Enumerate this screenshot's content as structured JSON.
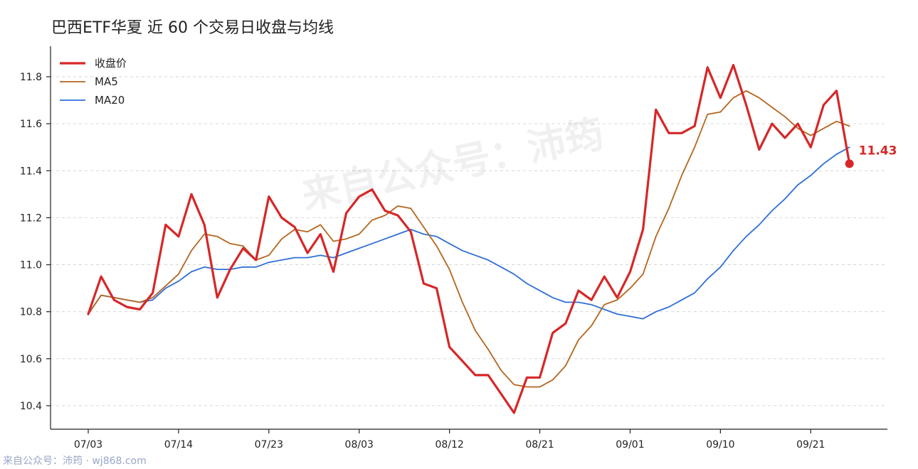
{
  "colors": {
    "close": "#d62728",
    "ma5": "#b5651d",
    "ma20": "#2f6fd6"
  },
  "watermark": {
    "center": "来自公众号：沛筠",
    "footer": "来自公众号：沛筠 · wj868.com"
  },
  "chart_data": {
    "type": "line",
    "title": "巴西ETF华夏 近 60 个交易日收盘与均线",
    "xlabel": "",
    "ylabel": "",
    "ylim": [
      10.3,
      11.93
    ],
    "yticks": [
      "10.4",
      "10.6",
      "10.8",
      "11.0",
      "11.2",
      "11.4",
      "11.6",
      "11.8"
    ],
    "xticks": [
      {
        "label": "07/03",
        "index": 0
      },
      {
        "label": "07/14",
        "index": 7
      },
      {
        "label": "07/23",
        "index": 14
      },
      {
        "label": "08/03",
        "index": 21
      },
      {
        "label": "08/12",
        "index": 28
      },
      {
        "label": "08/21",
        "index": 35
      },
      {
        "label": "09/01",
        "index": 42
      },
      {
        "label": "09/10",
        "index": 49
      },
      {
        "label": "09/21",
        "index": 56
      }
    ],
    "grid": "horizontal-dashed",
    "legend": "top-left",
    "last_value_label": "11.43",
    "series": [
      {
        "name": "收盘价",
        "key": "close",
        "values": [
          10.79,
          10.95,
          10.85,
          10.82,
          10.81,
          10.88,
          11.17,
          11.12,
          11.3,
          11.17,
          10.86,
          10.98,
          11.07,
          11.02,
          11.29,
          11.2,
          11.16,
          11.05,
          11.13,
          10.97,
          11.22,
          11.29,
          11.32,
          11.23,
          11.21,
          11.14,
          10.92,
          10.9,
          10.65,
          10.59,
          10.53,
          10.53,
          10.45,
          10.37,
          10.52,
          10.52,
          10.71,
          10.75,
          10.89,
          10.85,
          10.95,
          10.86,
          10.97,
          11.15,
          11.66,
          11.56,
          11.56,
          11.59,
          11.84,
          11.71,
          11.85,
          11.68,
          11.49,
          11.6,
          11.54,
          11.6,
          11.5,
          11.68,
          11.74,
          11.43
        ]
      },
      {
        "name": "MA5",
        "key": "ma5",
        "values": [
          10.79,
          10.87,
          10.86,
          10.85,
          10.84,
          10.86,
          10.91,
          10.96,
          11.06,
          11.13,
          11.12,
          11.09,
          11.08,
          11.02,
          11.04,
          11.11,
          11.15,
          11.14,
          11.17,
          11.1,
          11.11,
          11.13,
          11.19,
          11.21,
          11.25,
          11.24,
          11.16,
          11.08,
          10.98,
          10.84,
          10.72,
          10.64,
          10.55,
          10.49,
          10.48,
          10.48,
          10.51,
          10.57,
          10.68,
          10.74,
          10.83,
          10.85,
          10.9,
          10.96,
          11.12,
          11.24,
          11.38,
          11.5,
          11.64,
          11.65,
          11.71,
          11.74,
          11.71,
          11.67,
          11.63,
          11.58,
          11.55,
          11.58,
          11.61,
          11.59
        ]
      },
      {
        "name": "MA20",
        "key": "ma20",
        "values": [
          10.79,
          10.87,
          10.86,
          10.85,
          10.84,
          10.85,
          10.9,
          10.93,
          10.97,
          10.99,
          10.98,
          10.98,
          10.99,
          10.99,
          11.01,
          11.02,
          11.03,
          11.03,
          11.04,
          11.03,
          11.05,
          11.07,
          11.09,
          11.11,
          11.13,
          11.15,
          11.13,
          11.12,
          11.09,
          11.06,
          11.04,
          11.02,
          10.99,
          10.96,
          10.92,
          10.89,
          10.86,
          10.84,
          10.84,
          10.83,
          10.81,
          10.79,
          10.78,
          10.77,
          10.8,
          10.82,
          10.85,
          10.88,
          10.94,
          10.99,
          11.06,
          11.12,
          11.17,
          11.23,
          11.28,
          11.34,
          11.38,
          11.43,
          11.47,
          11.5
        ]
      }
    ]
  }
}
